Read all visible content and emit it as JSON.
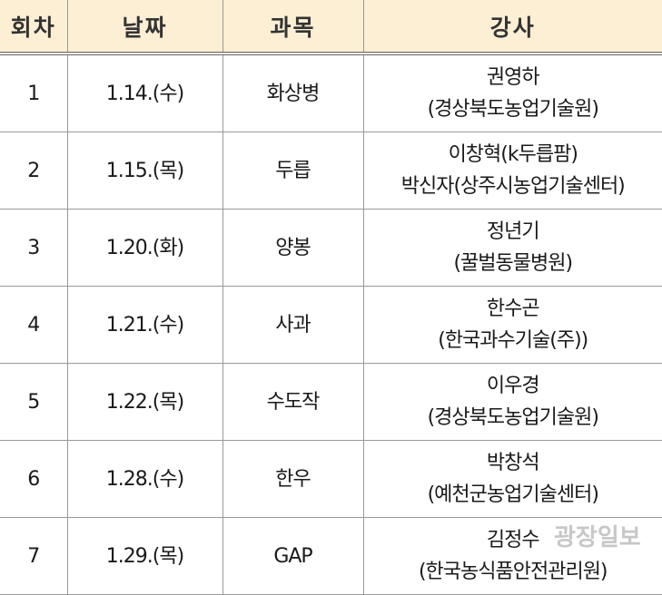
{
  "headers": [
    "회차",
    "날짜",
    "과목",
    "강사"
  ],
  "rows": [
    {
      "no": "1",
      "date": "1.14.(수)",
      "subject": "화상병",
      "instructor": "권영하",
      "org": "(경상북도농업기술원)"
    },
    {
      "no": "2",
      "date": "1.15.(목)",
      "subject": "두릅",
      "instructor": "이창혁(k두릅팜)",
      "org": "박신자(상주시농업기술센터)"
    },
    {
      "no": "3",
      "date": "1.20.(화)",
      "subject": "양봉",
      "instructor": "정년기",
      "org": "(꿀벌동물병원)"
    },
    {
      "no": "4",
      "date": "1.21.(수)",
      "subject": "사과",
      "instructor": "한수곤",
      "org": "(한국과수기술(주))"
    },
    {
      "no": "5",
      "date": "1.22.(목)",
      "subject": "수도작",
      "instructor": "이우경",
      "org": "(경상북도농업기술원)"
    },
    {
      "no": "6",
      "date": "1.28.(수)",
      "subject": "한우",
      "instructor": "박창석",
      "org": "(예천군농업기술센터)"
    },
    {
      "no": "7",
      "date": "1.29.(목)",
      "subject": "GAP",
      "instructor": "김정수",
      "org": "(한국농식품안전관리원)"
    }
  ],
  "watermark": "광장일보"
}
